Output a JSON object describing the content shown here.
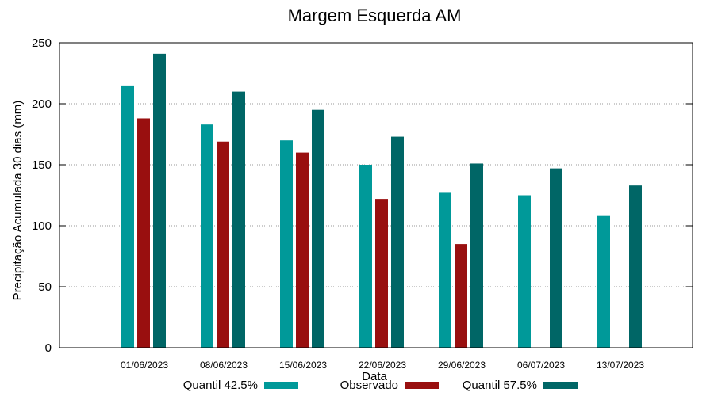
{
  "chart_data": {
    "type": "bar",
    "title": "Margem Esquerda AM",
    "xlabel": "Data",
    "ylabel": "Precipitação Acumulada 30 dias (mm)",
    "ylim": [
      0,
      250
    ],
    "yticks": [
      0,
      50,
      100,
      150,
      200,
      250
    ],
    "grid": "horizontal-dotted",
    "legend_position": "bottom",
    "categories": [
      "01/06/2023",
      "08/06/2023",
      "15/06/2023",
      "22/06/2023",
      "29/06/2023",
      "06/07/2023",
      "13/07/2023"
    ],
    "series": [
      {
        "name": "Quantil 42.5%",
        "color": "#009999",
        "values": [
          215,
          183,
          170,
          150,
          127,
          125,
          108
        ]
      },
      {
        "name": "Observado",
        "color": "#990F0F",
        "values": [
          188,
          169,
          160,
          122,
          85,
          null,
          null
        ]
      },
      {
        "name": "Quantil 57.5%",
        "color": "#006666",
        "values": [
          241,
          210,
          195,
          173,
          151,
          147,
          133
        ]
      }
    ]
  }
}
